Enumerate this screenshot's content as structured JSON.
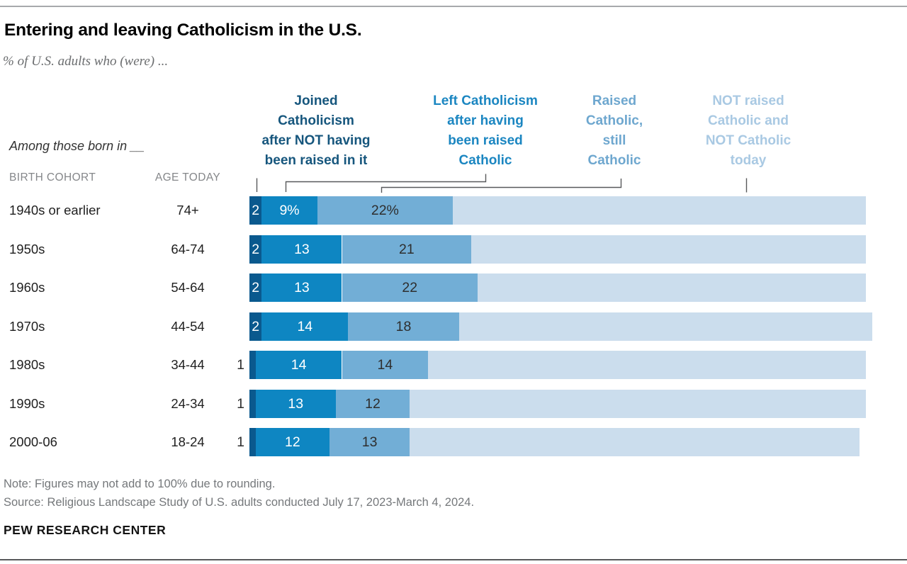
{
  "header": {
    "title": "Entering and leaving Catholicism in the U.S.",
    "subtitle": "% of U.S. adults who (were) ..."
  },
  "table": {
    "group_label": "Among those born in __",
    "cohort_header": "BIRTH COHORT",
    "age_header": "AGE TODAY"
  },
  "legend": [
    {
      "lines": [
        "Joined",
        "Catholicism",
        "after NOT having",
        "been raised in it"
      ],
      "color": "#16567d"
    },
    {
      "lines": [
        "Left Catholicism",
        "after having",
        "been raised",
        "Catholic"
      ],
      "color": "#1b86c1"
    },
    {
      "lines": [
        "Raised",
        "Catholic,",
        "still",
        "Catholic"
      ],
      "color": "#6ea7cf"
    },
    {
      "lines": [
        "NOT raised",
        "Catholic and",
        "NOT Catholic",
        "today"
      ],
      "color": "#a9c9e3"
    }
  ],
  "chart_data": {
    "type": "bar",
    "stacked": true,
    "orientation": "horizontal",
    "title": "Entering and leaving Catholicism in the U.S.",
    "categories": [
      "1940s or earlier",
      "1950s",
      "1960s",
      "1970s",
      "1980s",
      "1990s",
      "2000-06"
    ],
    "ages": [
      "74+",
      "64-74",
      "54-64",
      "44-54",
      "34-44",
      "24-34",
      "18-24"
    ],
    "series": [
      {
        "key": "joined",
        "name": "Joined Catholicism after NOT having been raised in it",
        "color": "#0a598e",
        "values": [
          2,
          2,
          2,
          2,
          1,
          1,
          1
        ]
      },
      {
        "key": "left",
        "name": "Left Catholicism after having been raised Catholic",
        "color": "#0e86c2",
        "values": [
          9,
          13,
          13,
          14,
          14,
          13,
          12
        ]
      },
      {
        "key": "raised-still",
        "name": "Raised Catholic, still Catholic",
        "color": "#72aed6",
        "values": [
          22,
          21,
          22,
          18,
          14,
          12,
          13
        ]
      },
      {
        "key": "not-raised",
        "name": "NOT raised Catholic and NOT Catholic today",
        "color": "#cbdded",
        "values": [
          67,
          64,
          63,
          67,
          71,
          74,
          73
        ]
      }
    ],
    "first_row_percent_suffix": "%",
    "xlim": [
      0,
      101
    ],
    "grid": false,
    "legend_position": "top"
  },
  "footer": {
    "note": "Note: Figures may not add to 100% due to rounding.",
    "source": "Source: Religious Landscape Study of U.S. adults conducted July 17, 2023-March 4, 2024.",
    "brand": "PEW RESEARCH CENTER"
  },
  "colors": {
    "top_rule": "#a7a9ac",
    "bottom_rule": "#58595b",
    "leader_lines": "#58595b",
    "dark_value_text": "#2e2e2e",
    "muted_text": "#75787b"
  }
}
